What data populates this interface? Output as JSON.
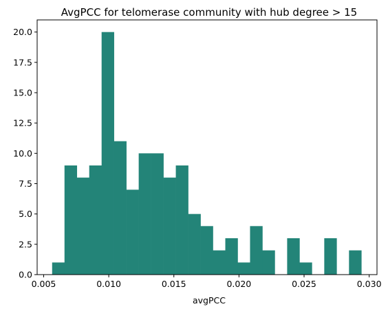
{
  "chart_data": {
    "type": "bar",
    "subtype": "histogram",
    "title": "AvgPCC for telomerase community with hub degree > 15",
    "xlabel": "avgPCC",
    "ylabel": "",
    "bin_start": 0.00565,
    "bin_width": 0.00095,
    "counts": [
      1,
      9,
      8,
      9,
      20,
      11,
      7,
      10,
      10,
      8,
      9,
      5,
      4,
      2,
      3,
      1,
      4,
      2,
      0,
      3,
      1,
      0,
      3,
      0,
      2
    ],
    "xlim": [
      0.0045,
      0.0306
    ],
    "ylim": [
      0,
      21
    ],
    "xticks": [
      0.005,
      0.01,
      0.015,
      0.02,
      0.025,
      0.03
    ],
    "xtick_labels": [
      "0.005",
      "0.010",
      "0.015",
      "0.020",
      "0.025",
      "0.030"
    ],
    "yticks": [
      0,
      2.5,
      5,
      7.5,
      10,
      12.5,
      15,
      17.5,
      20
    ],
    "ytick_labels": [
      "0.0",
      "2.5",
      "5.0",
      "7.5",
      "10.0",
      "12.5",
      "15.0",
      "17.5",
      "20.0"
    ],
    "bar_color": "#238478",
    "grid": false,
    "legend": "none"
  }
}
